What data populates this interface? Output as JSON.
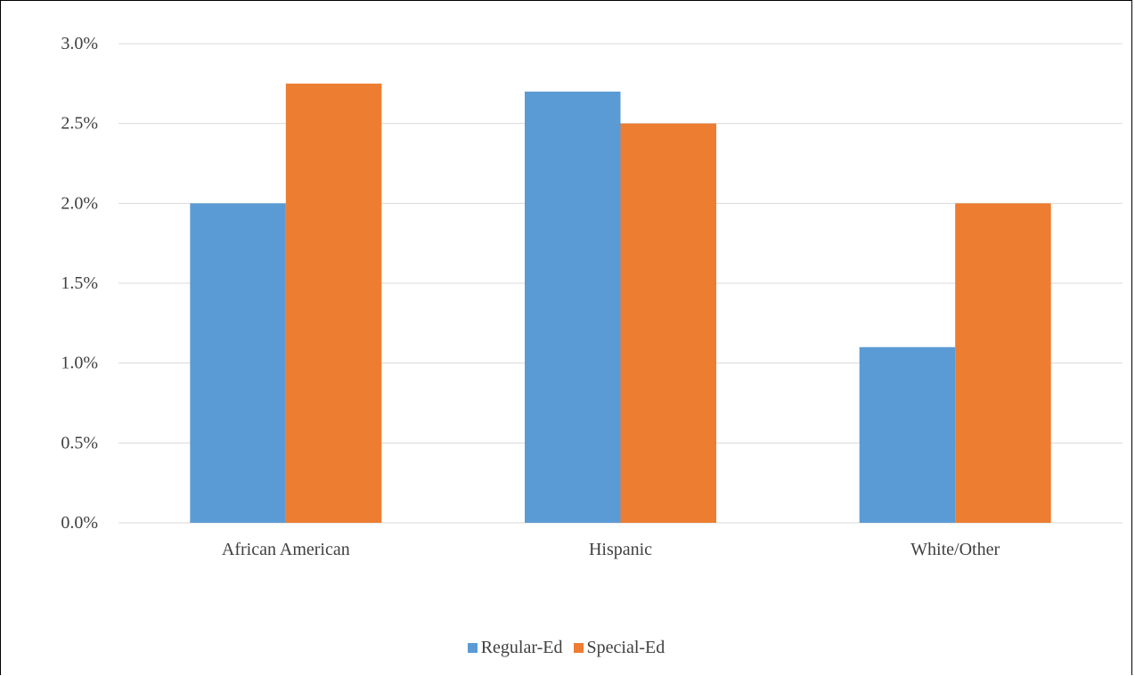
{
  "chart_data": {
    "type": "bar",
    "title": "",
    "xlabel": "",
    "ylabel": "",
    "categories": [
      "African American",
      "Hispanic",
      "White/Other"
    ],
    "series": [
      {
        "name": "Regular-Ed",
        "color": "#5B9BD5",
        "values": [
          2.0,
          2.7,
          1.1
        ]
      },
      {
        "name": "Special-Ed",
        "color": "#ED7D31",
        "values": [
          2.75,
          2.5,
          2.0
        ]
      }
    ],
    "ylim": [
      0,
      3.0
    ],
    "yticks": [
      "0.0%",
      "0.5%",
      "1.0%",
      "1.5%",
      "2.0%",
      "2.5%",
      "3.0%"
    ],
    "ytick_values": [
      0,
      0.5,
      1.0,
      1.5,
      2.0,
      2.5,
      3.0
    ],
    "grid": true,
    "legend_position": "bottom"
  }
}
